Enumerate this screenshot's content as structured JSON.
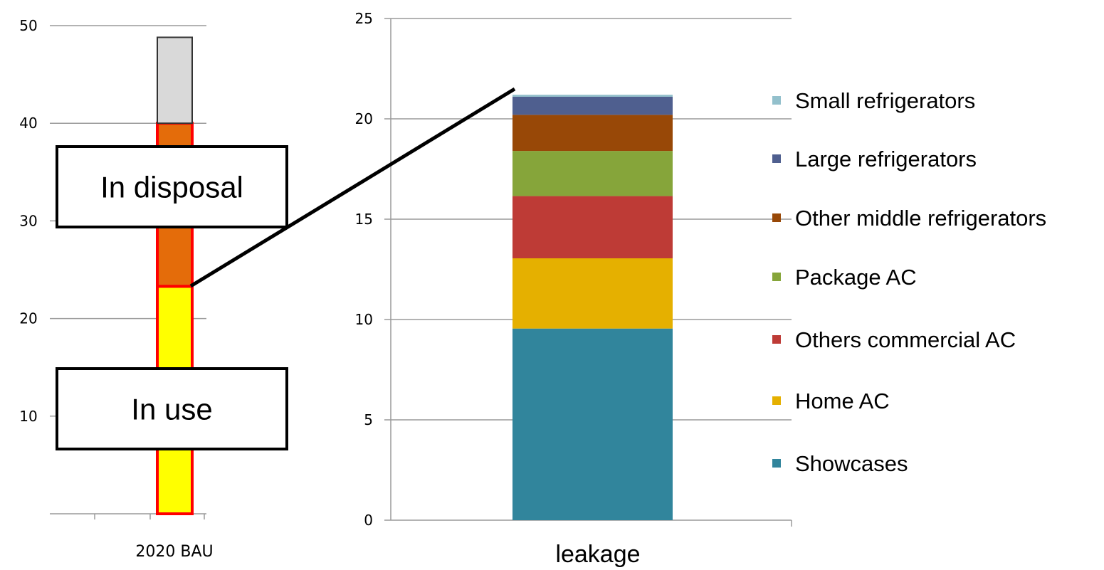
{
  "chart_data": [
    {
      "type": "bar",
      "stacked": true,
      "categories": [
        "2020 BAU"
      ],
      "ylim": [
        0,
        50
      ],
      "yticks": [
        10,
        20,
        30,
        40,
        50
      ],
      "grid": true,
      "series": [
        {
          "name": "In use",
          "values": [
            23.3
          ],
          "color": "#ffff00"
        },
        {
          "name": "In disposal",
          "values": [
            16.7
          ],
          "color": "#e46c0a"
        },
        {
          "name": "",
          "values": [
            8.8
          ],
          "color": "#d9d9d9"
        }
      ],
      "annotations": [
        "In disposal",
        "In use"
      ]
    },
    {
      "type": "bar",
      "stacked": true,
      "categories": [
        ""
      ],
      "xlabel": "leakage",
      "ylim": [
        0,
        25
      ],
      "yticks": [
        0,
        5,
        10,
        15,
        20,
        25
      ],
      "ytick_labels": [
        "0",
        "5",
        "10",
        "15",
        "20",
        "25"
      ],
      "grid": true,
      "legend_position": "right",
      "series": [
        {
          "name": "Showcases",
          "values": [
            9.55
          ],
          "color": "#31859c"
        },
        {
          "name": "Home AC",
          "values": [
            3.5
          ],
          "color": "#e5b000"
        },
        {
          "name": "Others commercial AC",
          "values": [
            3.1
          ],
          "color": "#be3b36"
        },
        {
          "name": "Package AC",
          "values": [
            2.25
          ],
          "color": "#86a53a"
        },
        {
          "name": "Other middle refrigerators",
          "values": [
            1.8
          ],
          "color": "#984807"
        },
        {
          "name": "Large refrigerators",
          "values": [
            0.9
          ],
          "color": "#4f5f8f"
        },
        {
          "name": "Small refrigerators",
          "values": [
            0.1
          ],
          "color": "#93c0cc"
        }
      ]
    }
  ]
}
